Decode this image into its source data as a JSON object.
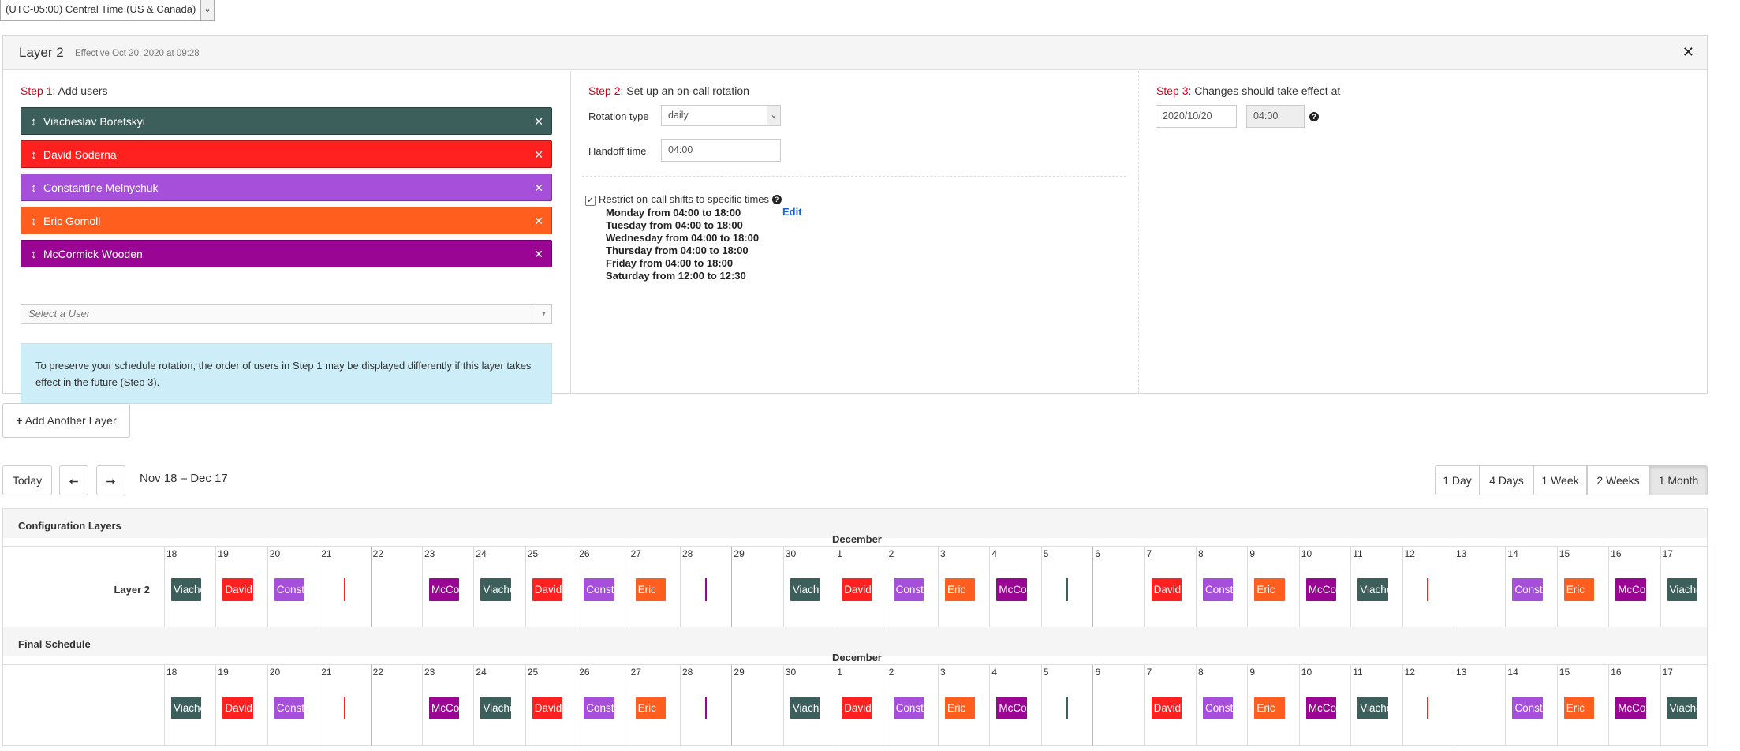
{
  "timezone": {
    "value": "(UTC-05:00) Central Time (US & Canada)",
    "arrow": "⌄"
  },
  "layer": {
    "title": "Layer 2",
    "effective": "Effective Oct 20, 2020 at 09:28",
    "close": "✕"
  },
  "step1": {
    "step_num": "Step 1",
    "heading": ": Add users",
    "users": [
      {
        "name": "Viacheslav Boretskyi",
        "color": "#3d5f5b"
      },
      {
        "name": "David Soderna",
        "color": "#ff2120"
      },
      {
        "name": "Constantine Melnychuk",
        "color": "#a64fdb"
      },
      {
        "name": "Eric Gomoll",
        "color": "#ff5e1f"
      },
      {
        "name": "McCormick Wooden",
        "color": "#9b0593"
      }
    ],
    "select_placeholder": "Select a User",
    "info": "To preserve your schedule rotation, the order of users in Step 1 may be displayed differently if this layer takes effect in the future (Step 3)."
  },
  "step2": {
    "step_num": "Step 2",
    "heading": ": Set up an on-call rotation",
    "rotation_label": "Rotation type",
    "rotation_value": "daily",
    "handoff_label": "Handoff time",
    "handoff_value": "04:00",
    "restrict_label": "Restrict on-call shifts to specific times",
    "restrict_checked": "✓",
    "help": "?",
    "restrictions": [
      "Monday from 04:00 to 18:00",
      "Tuesday from 04:00 to 18:00",
      "Wednesday from 04:00 to 18:00",
      "Thursday from 04:00 to 18:00",
      "Friday from 04:00 to 18:00",
      "Saturday from 12:00 to 12:30"
    ],
    "edit_label": "Edit"
  },
  "step3": {
    "step_num": "Step 3",
    "heading": ": Changes should take effect at",
    "date_value": "2020/10/20",
    "time_value": "04:00",
    "help": "?"
  },
  "add_layer": {
    "icon": "+",
    "label": "Add Another Layer"
  },
  "nav": {
    "today": "Today",
    "prev": "⭠",
    "next": "⭢",
    "range": "Nov 18 – Dec 17",
    "views": [
      "1 Day",
      "4 Days",
      "1 Week",
      "2 Weeks",
      "1 Month"
    ],
    "active_view": "1 Month"
  },
  "calendar": {
    "config_title": "Configuration Layers",
    "final_title": "Final Schedule",
    "month_label": "December",
    "layer_row_label": "Layer 2",
    "days": [
      "18",
      "19",
      "20",
      "21",
      "22",
      "23",
      "24",
      "25",
      "26",
      "27",
      "28",
      "29",
      "30",
      "1",
      "2",
      "3",
      "4",
      "5",
      "6",
      "7",
      "8",
      "9",
      "10",
      "11",
      "12",
      "13",
      "14",
      "15",
      "16",
      "17"
    ],
    "shifts": [
      {
        "day": 0,
        "label": "Viacheslav",
        "user": 0
      },
      {
        "day": 1,
        "label": "David",
        "user": 1
      },
      {
        "day": 2,
        "label": "Constantine",
        "user": 2
      },
      {
        "day": 3,
        "label": "",
        "user": 1,
        "sliver": true
      },
      {
        "day": 5,
        "label": "McCormick",
        "user": 4
      },
      {
        "day": 6,
        "label": "Viacheslav",
        "user": 0
      },
      {
        "day": 7,
        "label": "David",
        "user": 1
      },
      {
        "day": 8,
        "label": "Constantine",
        "user": 2
      },
      {
        "day": 9,
        "label": "Eric",
        "user": 3
      },
      {
        "day": 10,
        "label": "",
        "user": 4,
        "sliver": true
      },
      {
        "day": 12,
        "label": "Viacheslav",
        "user": 0
      },
      {
        "day": 13,
        "label": "David",
        "user": 1
      },
      {
        "day": 14,
        "label": "Constantine",
        "user": 2
      },
      {
        "day": 15,
        "label": "Eric",
        "user": 3
      },
      {
        "day": 16,
        "label": "McCormick",
        "user": 4
      },
      {
        "day": 17,
        "label": "",
        "user": 0,
        "sliver": true
      },
      {
        "day": 19,
        "label": "David",
        "user": 1
      },
      {
        "day": 20,
        "label": "Constantine",
        "user": 2
      },
      {
        "day": 21,
        "label": "Eric",
        "user": 3
      },
      {
        "day": 22,
        "label": "McCormick",
        "user": 4
      },
      {
        "day": 23,
        "label": "Viacheslav",
        "user": 0
      },
      {
        "day": 24,
        "label": "",
        "user": 1,
        "sliver": true
      },
      {
        "day": 26,
        "label": "Constantine",
        "user": 2
      },
      {
        "day": 27,
        "label": "Eric",
        "user": 3
      },
      {
        "day": 28,
        "label": "McCormick",
        "user": 4
      },
      {
        "day": 29,
        "label": "Viacheslav",
        "user": 0
      }
    ]
  }
}
